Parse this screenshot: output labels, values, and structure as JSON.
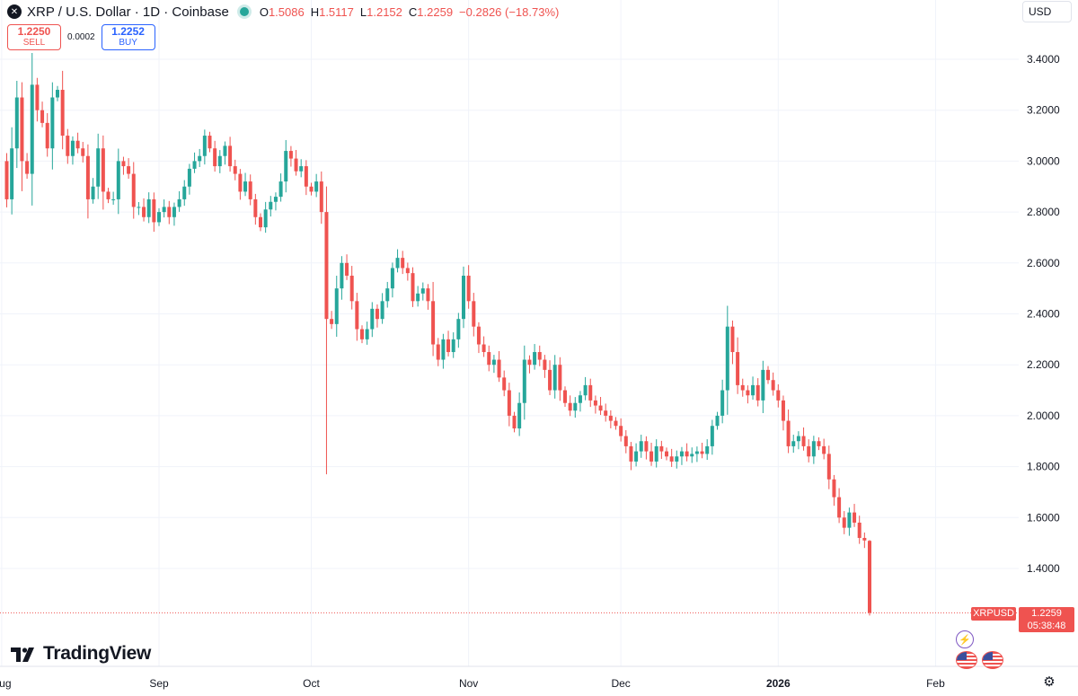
{
  "header": {
    "symbol_icon": "x-logo-icon",
    "title": "XRP / U.S. Dollar · 1D · Coinbase",
    "status_color": "#26a69a",
    "ohlc": {
      "o_label": "O",
      "o_value": "1.5086",
      "h_label": "H",
      "h_value": "1.5117",
      "l_label": "L",
      "l_value": "1.2152",
      "c_label": "C",
      "c_value": "1.2259",
      "change": "−0.2826 (−18.73%)"
    }
  },
  "trade": {
    "sell_price": "1.2250",
    "sell_label": "SELL",
    "spread": "0.0002",
    "buy_price": "1.2252",
    "buy_label": "BUY"
  },
  "currency": "USD",
  "logo_text": "TradingView",
  "last_price": {
    "symbol": "XRPUSD",
    "value": "1.2259",
    "countdown": "05:38:48",
    "line_value": 1.2259,
    "color": "#ef5350"
  },
  "colors": {
    "up": "#26a69a",
    "down": "#ef5350",
    "grid": "#f0f3fa",
    "text": "#131722"
  },
  "icons": {
    "event_flash": "flash-icon",
    "event_flags": [
      "us-flag-icon",
      "us-flag-icon"
    ],
    "settings": "gear-icon"
  },
  "chart_data": {
    "type": "candlestick",
    "title": "XRP / U.S. Dollar · 1D · Coinbase",
    "ylim": [
      1.22,
      3.46
    ],
    "y_ticks": [
      "3.4000",
      "3.2000",
      "3.0000",
      "2.8000",
      "2.6000",
      "2.4000",
      "2.2000",
      "2.0000",
      "1.8000",
      "1.6000",
      "1.4000"
    ],
    "y_tick_values": [
      3.4,
      3.2,
      3.0,
      2.8,
      2.6,
      2.4,
      2.2,
      2.0,
      1.8,
      1.6,
      1.4
    ],
    "x_ticks": [
      {
        "label": "Aug",
        "bar": -1,
        "bold": false
      },
      {
        "label": "Sep",
        "bar": 30,
        "bold": false
      },
      {
        "label": "Oct",
        "bar": 60,
        "bold": false
      },
      {
        "label": "Nov",
        "bar": 91,
        "bold": false
      },
      {
        "label": "Dec",
        "bar": 121,
        "bold": false
      },
      {
        "label": "2026",
        "bar": 152,
        "bold": true
      },
      {
        "label": "Feb",
        "bar": 183,
        "bold": false
      }
    ],
    "grid": true,
    "closes": [
      2.85,
      3.05,
      3.25,
      3.0,
      2.95,
      3.3,
      3.2,
      3.15,
      3.05,
      3.25,
      3.28,
      3.1,
      3.02,
      3.08,
      3.05,
      3.02,
      2.85,
      2.9,
      3.05,
      2.88,
      2.85,
      2.85,
      3.0,
      2.98,
      2.95,
      2.82,
      2.82,
      2.78,
      2.85,
      2.76,
      2.8,
      2.82,
      2.78,
      2.82,
      2.85,
      2.9,
      2.97,
      3.0,
      3.02,
      3.1,
      3.05,
      2.98,
      3.02,
      3.06,
      2.98,
      2.95,
      2.88,
      2.92,
      2.85,
      2.78,
      2.74,
      2.81,
      2.84,
      2.86,
      2.92,
      3.04,
      3.01,
      2.96,
      2.98,
      2.9,
      2.88,
      2.92,
      2.8,
      2.38,
      2.36,
      2.5,
      2.6,
      2.55,
      2.45,
      2.34,
      2.3,
      2.34,
      2.42,
      2.38,
      2.45,
      2.5,
      2.58,
      2.62,
      2.58,
      2.56,
      2.45,
      2.48,
      2.5,
      2.45,
      2.28,
      2.22,
      2.3,
      2.25,
      2.3,
      2.38,
      2.55,
      2.45,
      2.35,
      2.28,
      2.25,
      2.2,
      2.22,
      2.15,
      2.1,
      2.0,
      1.95,
      2.05,
      2.22,
      2.2,
      2.25,
      2.22,
      2.18,
      2.1,
      2.2,
      2.1,
      2.05,
      2.02,
      2.05,
      2.08,
      2.12,
      2.06,
      2.04,
      2.02,
      2.0,
      1.98,
      1.96,
      1.92,
      1.88,
      1.82,
      1.86,
      1.9,
      1.86,
      1.82,
      1.88,
      1.86,
      1.84,
      1.82,
      1.84,
      1.86,
      1.84,
      1.85,
      1.86,
      1.85,
      1.88,
      1.96,
      2.0,
      2.1,
      2.35,
      2.25,
      2.12,
      2.1,
      2.08,
      2.12,
      2.06,
      2.18,
      2.14,
      2.1,
      2.06,
      1.98,
      1.88,
      1.9,
      1.92,
      1.88,
      1.84,
      1.9,
      1.88,
      1.85,
      1.75,
      1.68,
      1.6,
      1.56,
      1.62,
      1.58,
      1.52,
      1.51,
      1.2259
    ],
    "open_first": 3.0,
    "ohlc_last": {
      "open": 1.5086,
      "high": 1.5117,
      "low": 1.2152,
      "close": 1.2259
    },
    "notable_lows": {
      "63": 1.77
    }
  }
}
